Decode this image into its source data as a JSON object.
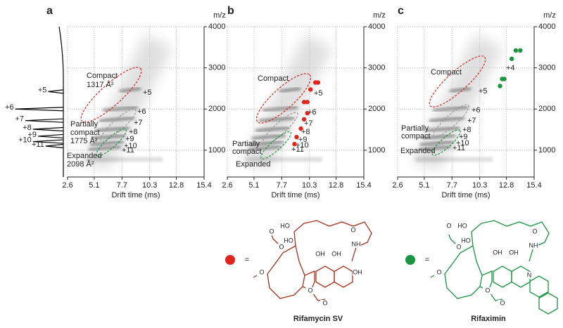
{
  "chart_data": [
    {
      "type": "scatter",
      "label": "a",
      "xlabel": "Drift time (ms)",
      "ylabel": "m/z",
      "xlim": [
        2.6,
        15.4
      ],
      "xticks": [
        2.6,
        5.1,
        7.7,
        10.3,
        12.8,
        15.4
      ],
      "ylim": [
        350,
        4000
      ],
      "yticks": [
        1000,
        2000,
        3000,
        4000
      ],
      "grid": true,
      "annotations": [
        {
          "text": "Compact",
          "color": "#e0261b"
        },
        {
          "text": "1317 Å²",
          "color": "#e0261b"
        },
        {
          "text": "Partially",
          "color": "#9a9a9a"
        },
        {
          "text": "compact",
          "color": "#9a9a9a"
        },
        {
          "text": "1775 Å²",
          "color": "#9a9a9a"
        },
        {
          "text": "Expanded",
          "color": "#1a9641"
        },
        {
          "text": "2098 Å²",
          "color": "#1a9641"
        }
      ],
      "charge_labels": [
        "+5",
        "+6",
        "+7",
        "+8",
        "+9",
        "+10",
        "+11"
      ],
      "series": [],
      "spectrum": {
        "color": "#000000",
        "labels": [
          "+5",
          "+6",
          "+7",
          "+8",
          "+9",
          "+10",
          "+11"
        ],
        "x": [
          2424,
          2000,
          1720,
          1510,
          1340,
          1210,
          1100
        ],
        "values": [
          30,
          95,
          75,
          60,
          50,
          60,
          35
        ]
      }
    },
    {
      "type": "scatter",
      "label": "b",
      "xlabel": "Drift time (ms)",
      "ylabel": "m/z",
      "xlim": [
        2.6,
        15.4
      ],
      "xticks": [
        2.6,
        5.1,
        7.7,
        10.3,
        12.8,
        15.4
      ],
      "ylim": [
        350,
        4000
      ],
      "yticks": [
        1000,
        2000,
        3000,
        4000
      ],
      "grid": true,
      "annotations": [
        {
          "text": "Compact",
          "color": "#e0261b"
        },
        {
          "text": "Partially",
          "color": "#9a9a9a"
        },
        {
          "text": "compact",
          "color": "#9a9a9a"
        },
        {
          "text": "Expanded",
          "color": "#1a9641"
        }
      ],
      "charge_labels": [
        "+5",
        "+6",
        "+7",
        "+8",
        "+9",
        "+10",
        "+11"
      ],
      "series": [
        {
          "color": "#e0261b",
          "x": [
            10.85,
            11.1,
            10.4,
            10.1,
            9.8,
            10.1,
            9.8,
            9.5,
            9.1,
            8.9
          ],
          "values": [
            2644,
            2644,
            2475,
            2170,
            2170,
            1900,
            1750,
            1525,
            1320,
            1150
          ]
        }
      ]
    },
    {
      "type": "scatter",
      "label": "c",
      "xlabel": "Drift time (ms)",
      "ylabel": "m/z",
      "xlim": [
        2.6,
        15.4
      ],
      "xticks": [
        2.6,
        5.1,
        7.7,
        10.3,
        12.8,
        15.4
      ],
      "ylim": [
        350,
        4000
      ],
      "yticks": [
        1000,
        2000,
        3000,
        4000
      ],
      "grid": true,
      "annotations": [
        {
          "text": "Compact",
          "color": "#e0261b"
        },
        {
          "text": "Partially",
          "color": "#9a9a9a"
        },
        {
          "text": "compact",
          "color": "#9a9a9a"
        },
        {
          "text": "Expanded",
          "color": "#1a9641"
        }
      ],
      "charge_labels": [
        "+4",
        "+5",
        "+6",
        "+7",
        "+8",
        "+9",
        "+10",
        "+11"
      ],
      "series": [
        {
          "color": "#1a9641",
          "x": [
            13.68,
            14.1,
            13.3,
            12.6,
            12.4,
            12.2
          ],
          "values": [
            3424,
            3424,
            3220,
            2730,
            2730,
            2560
          ]
        }
      ]
    }
  ],
  "structures": [
    {
      "name": "Rifamycin SV",
      "color": "#a8321c",
      "marker_color": "#e0261b",
      "equals": "=",
      "atoms": [
        "O",
        "O",
        "HO",
        "HO",
        "OH",
        "OH",
        "NH",
        "O",
        "O",
        "O",
        "OH",
        "O"
      ]
    },
    {
      "name": "Rifaximin",
      "color": "#1a9641",
      "marker_color": "#1a9641",
      "equals": "=",
      "atoms": [
        "O",
        "O",
        "HO",
        "HO",
        "OH",
        "OH",
        "NH",
        "O",
        "O",
        "O",
        "N",
        "O"
      ]
    }
  ]
}
